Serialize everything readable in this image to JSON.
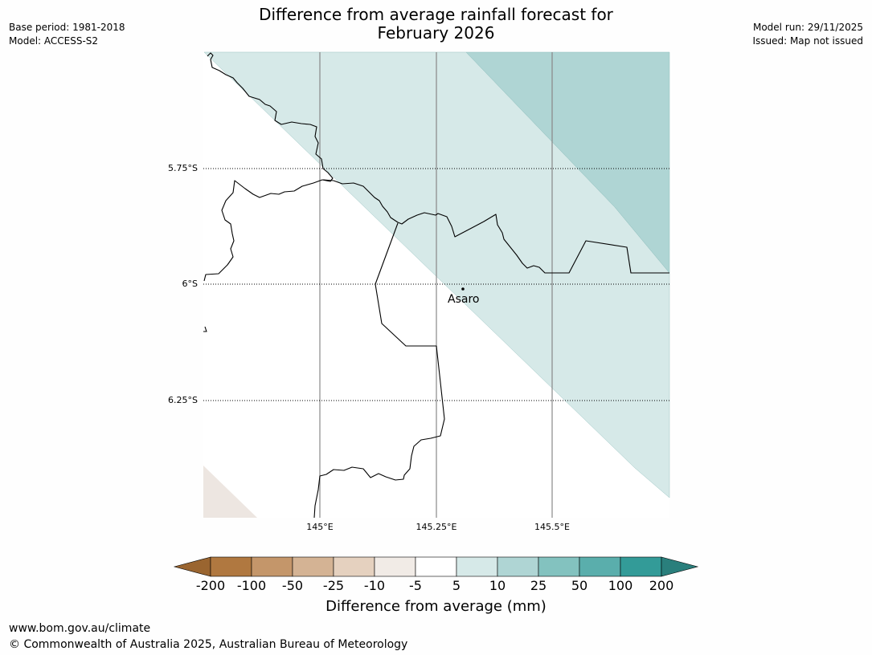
{
  "header": {
    "title_line1": "Difference from average rainfall forecast for",
    "title_line2": "February 2026",
    "base_period": "Base period: 1981-2018",
    "model": "Model: ACCESS-S2",
    "model_run": "Model run: 29/11/2025",
    "issued": "Issued: Map not issued"
  },
  "map": {
    "lat_labels": [
      "5.75°S",
      "6°S",
      "6.25°S"
    ],
    "lon_labels": [
      "145°E",
      "145.25°E",
      "145.5°E"
    ],
    "town": "Asaro"
  },
  "colorbar": {
    "title": "Difference from average (mm)",
    "tick_labels": [
      "-200",
      "-100",
      "-50",
      "-25",
      "-10",
      "-5",
      "5",
      "10",
      "25",
      "50",
      "100",
      "200"
    ],
    "colors": [
      "#9a6530",
      "#b07840",
      "#c4966a",
      "#d4b394",
      "#e5d1bf",
      "#f1ebe6",
      "#ffffff",
      "#d6e9e8",
      "#afd5d4",
      "#83c2bf",
      "#5aaeac",
      "#339b98",
      "#2a7f7c"
    ]
  },
  "footer": {
    "url": "www.bom.gov.au/climate",
    "copyright": "© Commonwealth of Australia 2025, Australian Bureau of Meteorology"
  }
}
